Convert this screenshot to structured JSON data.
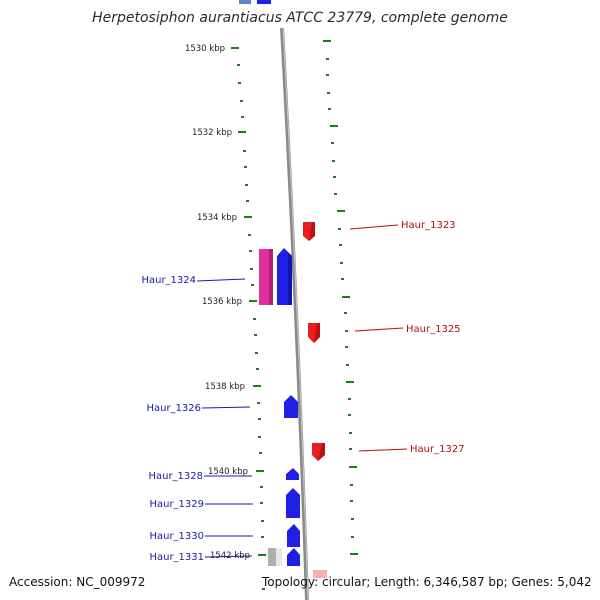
{
  "title": "Herpetosiphon aurantiacus ATCC 23779, complete genome",
  "accession": "Accession: NC_009972",
  "topology": "Topology: circular; Length: 6,346,587 bp; Genes: 5,042",
  "colors": {
    "backbone": "#8a8a8a",
    "tick": "#1a7f1a",
    "forward_gene": "#1f1fe6",
    "reverse_gene": "#e61f1f",
    "rna_gene": "#e0309a",
    "pseudo_gene": "#b0b0b0",
    "forward_label": "#1a1aa8",
    "reverse_label": "#b01010"
  },
  "scale_labels": [
    "1530 kbp",
    "1532 kbp",
    "1534 kbp",
    "1536 kbp",
    "1538 kbp",
    "1540 kbp",
    "1542 kbp"
  ],
  "gene_labels": {
    "forward": [
      "Haur_1324",
      "Haur_1326",
      "Haur_1328",
      "Haur_1329",
      "Haur_1330",
      "Haur_1331"
    ],
    "reverse": [
      "Haur_1323",
      "Haur_1325",
      "Haur_1327"
    ]
  }
}
